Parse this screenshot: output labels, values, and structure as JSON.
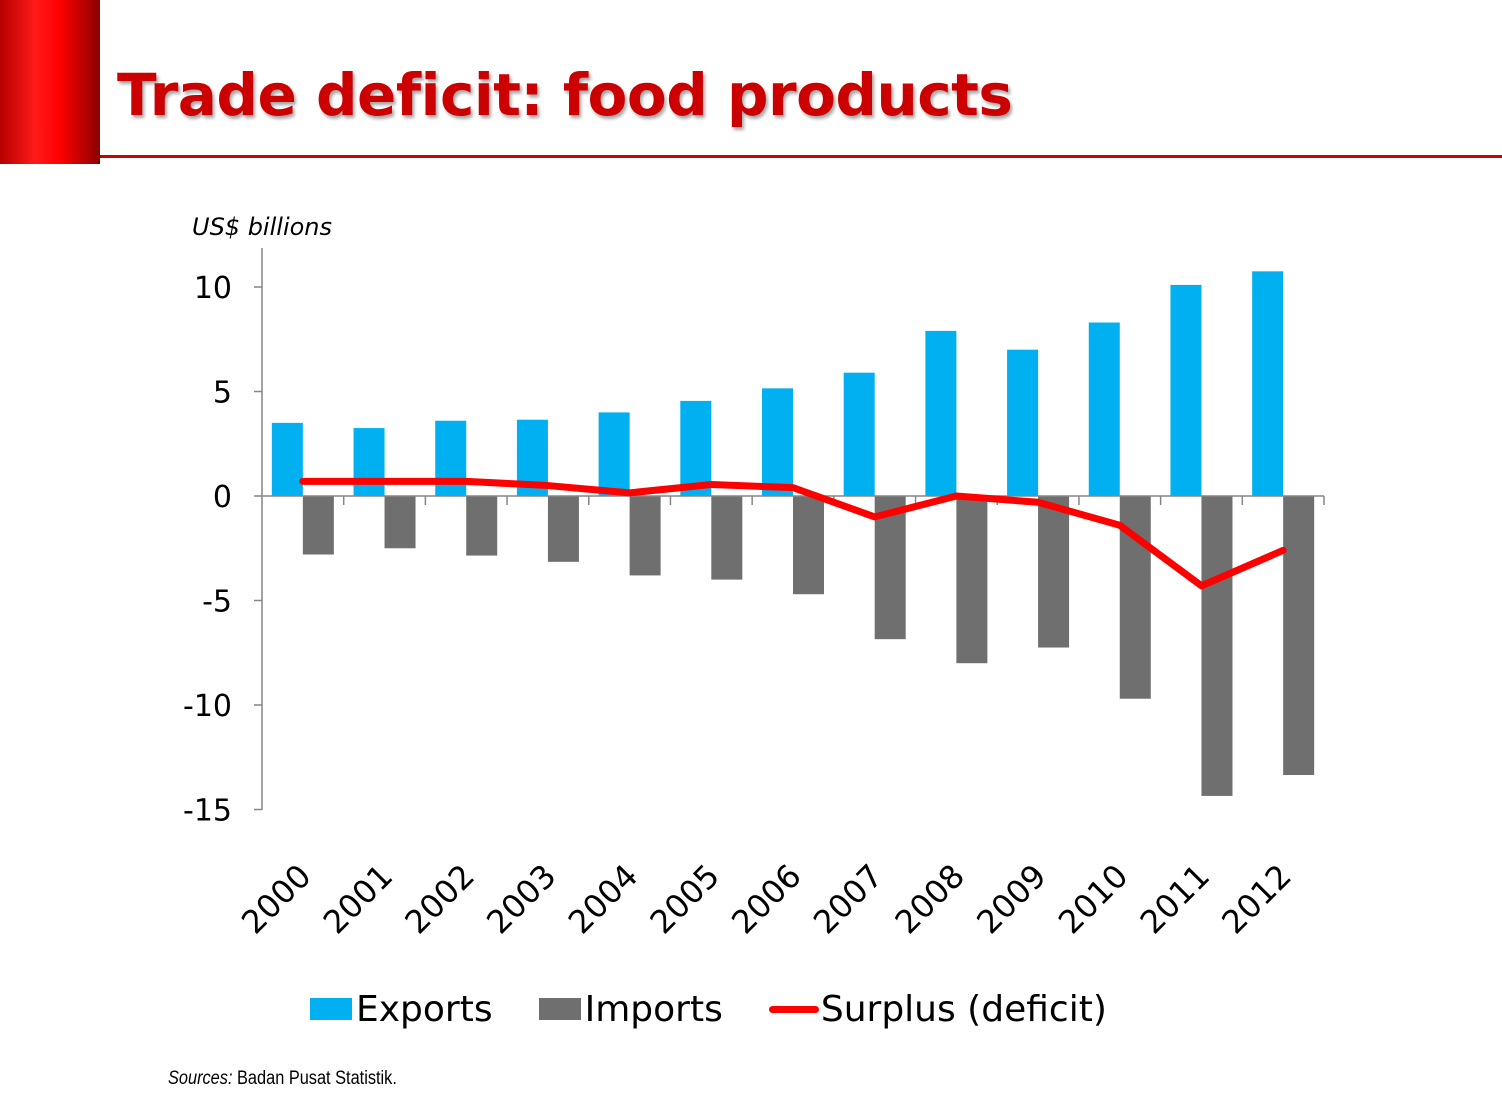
{
  "slide": {
    "title": "Trade deficit: food products",
    "unit_label": "US$ billions",
    "source_label": "Sources:",
    "source_text": " Badan Pusat Statistik."
  },
  "colors": {
    "accent": "#cc0000",
    "exports": "#00b0f0",
    "imports": "#6f6f6f",
    "surplus": "#ff0000"
  },
  "chart_data": {
    "type": "bar",
    "title": "Trade deficit: food products",
    "ylabel": "US$ billions",
    "xlabel": "",
    "categories": [
      "2000",
      "2001",
      "2002",
      "2003",
      "2004",
      "2005",
      "2006",
      "2007",
      "2008",
      "2009",
      "2010",
      "2011",
      "2012"
    ],
    "ylim": [
      -15,
      12
    ],
    "yticks": [
      10,
      5,
      0,
      -5,
      -10,
      -15
    ],
    "ytick_labels": [
      "10",
      "5",
      "0",
      "-5",
      "-10",
      "-15"
    ],
    "series": [
      {
        "name": "Exports",
        "kind": "bar",
        "values": [
          3.5,
          3.25,
          3.6,
          3.65,
          4.0,
          4.55,
          5.15,
          5.9,
          7.9,
          7.0,
          8.3,
          10.1,
          10.75
        ]
      },
      {
        "name": "Imports",
        "kind": "bar",
        "values": [
          -2.8,
          -2.5,
          -2.85,
          -3.15,
          -3.8,
          -4.0,
          -4.7,
          -6.85,
          -8.0,
          -7.25,
          -9.7,
          -14.35,
          -13.35
        ]
      },
      {
        "name": "Surplus (deficit)",
        "kind": "line",
        "values": [
          0.7,
          0.7,
          0.7,
          0.5,
          0.15,
          0.55,
          0.4,
          -1.0,
          0.0,
          -0.3,
          -1.4,
          -4.3,
          -2.6
        ]
      }
    ],
    "legend": [
      "Exports",
      "Imports",
      "Surplus (deficit)"
    ],
    "legend_position": "bottom",
    "grid": false
  }
}
